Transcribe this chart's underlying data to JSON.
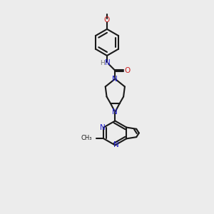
{
  "bg_color": "#ececec",
  "bond_color": "#1a1a1a",
  "N_color": "#2020cc",
  "O_color": "#cc2020",
  "H_color": "#777777",
  "line_width": 1.5,
  "figsize": [
    3.0,
    3.0
  ],
  "dpi": 100,
  "xlim": [
    0,
    10
  ],
  "ylim": [
    0,
    13
  ]
}
